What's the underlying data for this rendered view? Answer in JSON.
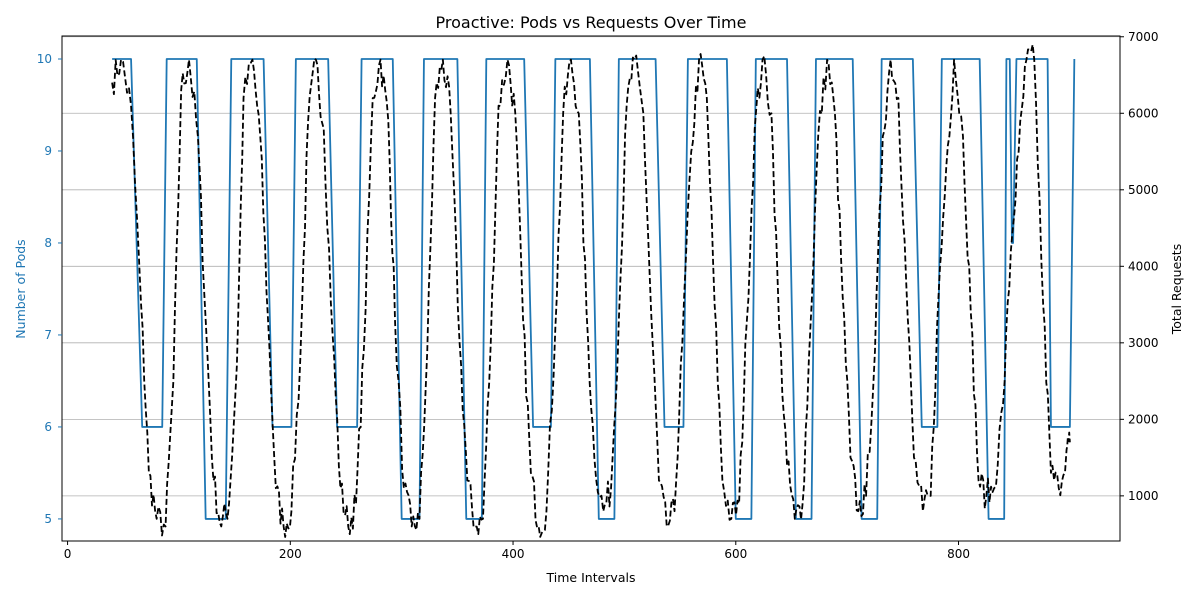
{
  "chart_data": {
    "type": "line",
    "title": "Proactive: Pods vs Requests Over Time",
    "xlabel": "Time Intervals",
    "ylabel_left": "Number of Pods",
    "ylabel_right": "Total Requests",
    "xlim": [
      -5,
      945
    ],
    "ylim_left": [
      4.76,
      10.25
    ],
    "ylim_right": [
      410,
      7010
    ],
    "x_ticks": [
      0,
      200,
      400,
      600,
      800
    ],
    "y_left_ticks": [
      5,
      6,
      7,
      8,
      9,
      10
    ],
    "y_right_ticks": [
      1000,
      2000,
      3000,
      4000,
      5000,
      6000,
      7000
    ],
    "grid": "horizontal (right axis)",
    "colors": {
      "pods": "#1f77b4",
      "requests": "#000000",
      "grid": "#b0b0b0",
      "left_axis_text": "#1f77b4"
    },
    "series": [
      {
        "axis": "left",
        "style": "solid",
        "x": [
          40,
          57,
          67,
          85,
          89,
          116,
          124,
          142,
          147,
          176,
          184,
          201,
          205,
          234,
          242,
          260,
          264,
          292,
          300,
          316,
          320,
          350,
          358,
          372,
          376,
          410,
          418,
          434,
          438,
          469,
          477,
          491,
          495,
          528,
          536,
          553,
          557,
          592,
          600,
          614,
          618,
          646,
          654,
          668,
          672,
          705,
          713,
          727,
          731,
          759,
          767,
          781,
          785,
          819,
          827,
          841,
          843,
          846,
          848,
          849,
          852,
          853,
          856,
          880,
          883,
          900,
          904
        ],
        "y": [
          10,
          10,
          6,
          6,
          10,
          10,
          5,
          5,
          10,
          10,
          6,
          6,
          10,
          10,
          6,
          6,
          10,
          10,
          5,
          5,
          10,
          10,
          5,
          5,
          10,
          10,
          6,
          6,
          10,
          10,
          5,
          5,
          10,
          10,
          6,
          6,
          10,
          10,
          5,
          5,
          10,
          10,
          5,
          5,
          10,
          10,
          5,
          5,
          10,
          10,
          6,
          6,
          10,
          10,
          5,
          5,
          10,
          10,
          8,
          8,
          10,
          10,
          10,
          10,
          6,
          6,
          10
        ]
      },
      {
        "axis": "right",
        "style": "dashed",
        "x": [
          40,
          48,
          57,
          66,
          73,
          80,
          88,
          95,
          102,
          109,
          117,
          124,
          131,
          138,
          145,
          152,
          158,
          166,
          173,
          180,
          187,
          194,
          201,
          209,
          216,
          223,
          230,
          238,
          245,
          252,
          259,
          266,
          274,
          281,
          288,
          294,
          302,
          309,
          316,
          323,
          330,
          337,
          344,
          352,
          359,
          366,
          373,
          380,
          387,
          395,
          402,
          409,
          416,
          423,
          430,
          438,
          445,
          452,
          459,
          466,
          473,
          481,
          488,
          495,
          502,
          509,
          517,
          524,
          531,
          538,
          545,
          552,
          560,
          567,
          574,
          581,
          588,
          596,
          603,
          610,
          617,
          624,
          632,
          639,
          646,
          653,
          660,
          667,
          674,
          682,
          689,
          696,
          703,
          710,
          717,
          725,
          732,
          739,
          746,
          753,
          760,
          768,
          775,
          782,
          789,
          796,
          804,
          811,
          818,
          825,
          832,
          840,
          847,
          854,
          861,
          868,
          876,
          883,
          890,
          897,
          900
        ],
        "y": [
          6400,
          6700,
          6100,
          3500,
          1300,
          700,
          600,
          2500,
          6300,
          6700,
          5700,
          3300,
          1200,
          600,
          900,
          2700,
          6200,
          6700,
          5700,
          3300,
          1100,
          600,
          800,
          2800,
          5900,
          6700,
          5800,
          3100,
          1100,
          600,
          900,
          2900,
          6200,
          6700,
          5900,
          3300,
          1100,
          600,
          700,
          2900,
          6200,
          6700,
          6000,
          3000,
          1200,
          600,
          700,
          3000,
          6100,
          6700,
          6000,
          3300,
          1300,
          600,
          800,
          3200,
          6000,
          6700,
          6000,
          3400,
          1500,
          800,
          1100,
          3300,
          6100,
          6700,
          6000,
          3400,
          1200,
          600,
          800,
          3000,
          5500,
          6700,
          6200,
          3500,
          1200,
          700,
          900,
          3300,
          5800,
          6700,
          6000,
          3200,
          1400,
          700,
          900,
          3200,
          5700,
          6700,
          6000,
          3600,
          1500,
          800,
          1000,
          2900,
          5700,
          6700,
          6200,
          3800,
          1500,
          800,
          1000,
          3600,
          5300,
          6700,
          5700,
          3400,
          1200,
          1000,
          1100,
          2200,
          4200,
          5500,
          6700,
          6700,
          3500,
          1300,
          1100,
          1600,
          1700
        ]
      }
    ]
  }
}
